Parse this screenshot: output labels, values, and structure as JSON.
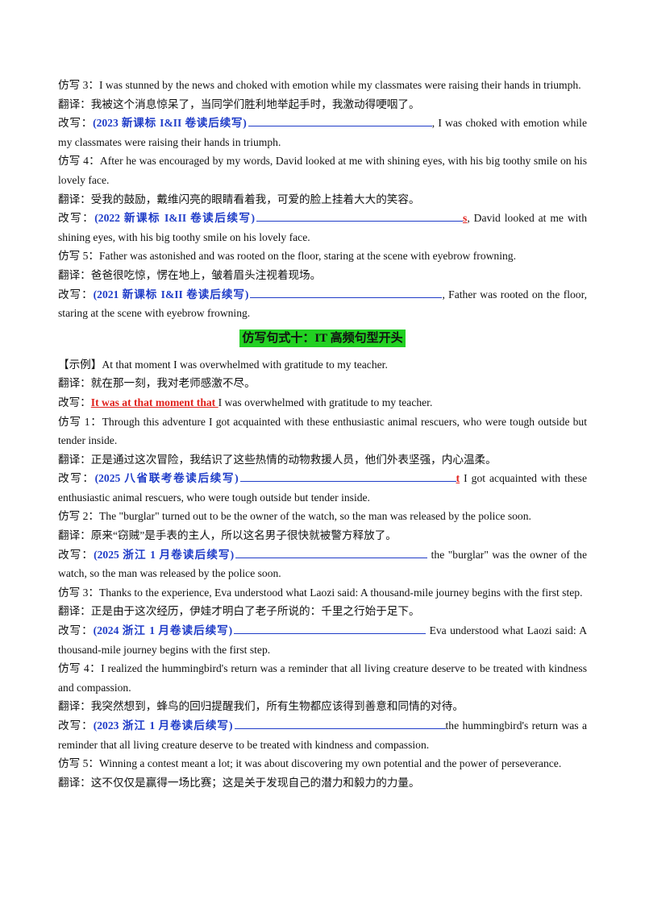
{
  "section1": {
    "f3": {
      "label": "仿写 3：",
      "text": "I was stunned by the news and choked with emotion while my classmates were raising their hands in triumph.",
      "trans_label": "翻译：",
      "trans": "我被这个消息惊呆了，当同学们胜利地举起手时，我激动得哽咽了。",
      "rw_label": "改写：",
      "source": "(2023 新课标 I&II 卷读后续写)",
      "tail": ", I was choked with emotion while my classmates were raising their hands in triumph."
    },
    "f4": {
      "label": "仿写 4：",
      "text": "After he was encouraged by my words, David looked at me with shining eyes, with his big toothy smile on his lovely face.",
      "trans_label": "翻译：",
      "trans": "受我的鼓励，戴维闪亮的眼睛看着我，可爱的脸上挂着大大的笑容。",
      "rw_label": "改写：",
      "source": "(2022 新课标 I&II 卷读后续写)",
      "red": "s",
      "tail": ", David looked at me with shining eyes, with his big toothy smile on his lovely face."
    },
    "f5": {
      "label": "仿写 5：",
      "text": "Father was astonished and was rooted on the floor, staring at the scene with eyebrow frowning.",
      "trans_label": "翻译：",
      "trans": "爸爸很吃惊，愣在地上，皱着眉头注视着现场。",
      "rw_label": "改写：",
      "source": "(2021 新课标 I&II 卷读后续写)",
      "tail": ", Father was rooted on the floor, staring at the scene with eyebrow frowning."
    }
  },
  "heading": "仿写句式十：IT 高频句型开头",
  "section2": {
    "example": {
      "label": "【示例】",
      "text": "At that moment I was overwhelmed with gratitude to my teacher.",
      "trans_label": "翻译：",
      "trans": "就在那一刻，我对老师感激不尽。",
      "rw_label": "改写：",
      "red": "It was at that moment that ",
      "tail": "I was overwhelmed with gratitude to my teacher."
    },
    "f1": {
      "label": "仿写 1：",
      "text": "Through this adventure I got acquainted with these enthusiastic animal rescuers, who were tough outside but tender inside.",
      "trans_label": "翻译：",
      "trans": "正是通过这次冒险，我结识了这些热情的动物救援人员，他们外表坚强，内心温柔。",
      "rw_label": "改写：",
      "source": "(2025 八省联考卷读后续写)",
      "red": "t",
      "tail": " I got acquainted with these enthusiastic animal rescuers, who were tough outside but tender inside."
    },
    "f2": {
      "label": "仿写 2：",
      "text": "The \"burglar\" turned out to be the owner of the watch, so the man was released by the police soon.",
      "trans_label": "翻译：",
      "trans": "原来“窃贼”是手表的主人，所以这名男子很快就被警方释放了。",
      "rw_label": "改写：",
      "source": "(2025 浙江 1 月卷读后续写)",
      "tail": " the \"burglar\" was the owner of the watch, so the man was released by the police soon."
    },
    "f3": {
      "label": "仿写 3：",
      "text": "Thanks to the experience, Eva understood what Laozi said: A thousand-mile journey begins with the first step.",
      "trans_label": "翻译：",
      "trans": "正是由于这次经历，伊娃才明白了老子所说的：千里之行始于足下。",
      "rw_label": "改写：",
      "source": "(2024 浙江 1 月卷读后续写)",
      "tail": " Eva understood what Laozi said: A thousand-mile journey begins with the first step."
    },
    "f4": {
      "label": "仿写 4：",
      "text": "I realized the hummingbird's return was a reminder that all living creature deserve to be treated with kindness and compassion.",
      "trans_label": "翻译：",
      "trans": "我突然想到，蜂鸟的回归提醒我们，所有生物都应该得到善意和同情的对待。",
      "rw_label": "改写：",
      "source": "(2023 浙江 1 月卷读后续写)",
      "tail": "the hummingbird's return was a reminder that all living creature deserve to be treated with kindness and compassion."
    },
    "f5": {
      "label": "仿写 5：",
      "text": "Winning a contest meant a lot; it was about discovering my own potential and the power of perseverance.",
      "trans_label": "翻译：",
      "trans": "这不仅仅是赢得一场比赛；这是关于发现自己的潜力和毅力的力量。"
    }
  }
}
